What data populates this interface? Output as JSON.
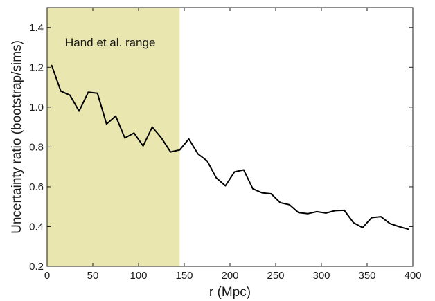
{
  "chart_data": {
    "type": "line",
    "xlabel": "r (Mpc)",
    "ylabel": "Uncertainty ratio (bootstrap/sims)",
    "xlim": [
      0,
      400
    ],
    "ylim": [
      0.2,
      1.5
    ],
    "xticks": [
      0,
      50,
      100,
      150,
      200,
      250,
      300,
      350,
      400
    ],
    "yticks": [
      0.2,
      0.4,
      0.6,
      0.8,
      1.0,
      1.2,
      1.4
    ],
    "ytick_labels": [
      "0.2",
      "0.4",
      "0.6",
      "0.8",
      "1.0",
      "1.2",
      "1.4"
    ],
    "grid": false,
    "shaded_region": {
      "x_range": [
        0,
        145
      ],
      "label": "Hand et al. range",
      "color": "#e9e6b0"
    },
    "series": [
      {
        "color": "#000000",
        "x": [
          5,
          15,
          25,
          35,
          45,
          55,
          65,
          75,
          85,
          95,
          105,
          115,
          125,
          135,
          145,
          155,
          165,
          175,
          185,
          195,
          205,
          215,
          225,
          235,
          245,
          255,
          265,
          275,
          285,
          295,
          305,
          315,
          325,
          335,
          345,
          355,
          365,
          375,
          385,
          395
        ],
        "y": [
          1.21,
          1.08,
          1.06,
          0.98,
          1.075,
          1.07,
          0.915,
          0.955,
          0.845,
          0.87,
          0.805,
          0.9,
          0.845,
          0.775,
          0.785,
          0.84,
          0.765,
          0.73,
          0.645,
          0.605,
          0.675,
          0.685,
          0.59,
          0.57,
          0.565,
          0.52,
          0.51,
          0.47,
          0.465,
          0.475,
          0.468,
          0.48,
          0.482,
          0.42,
          0.395,
          0.445,
          0.45,
          0.415,
          0.4,
          0.387
        ]
      }
    ]
  }
}
